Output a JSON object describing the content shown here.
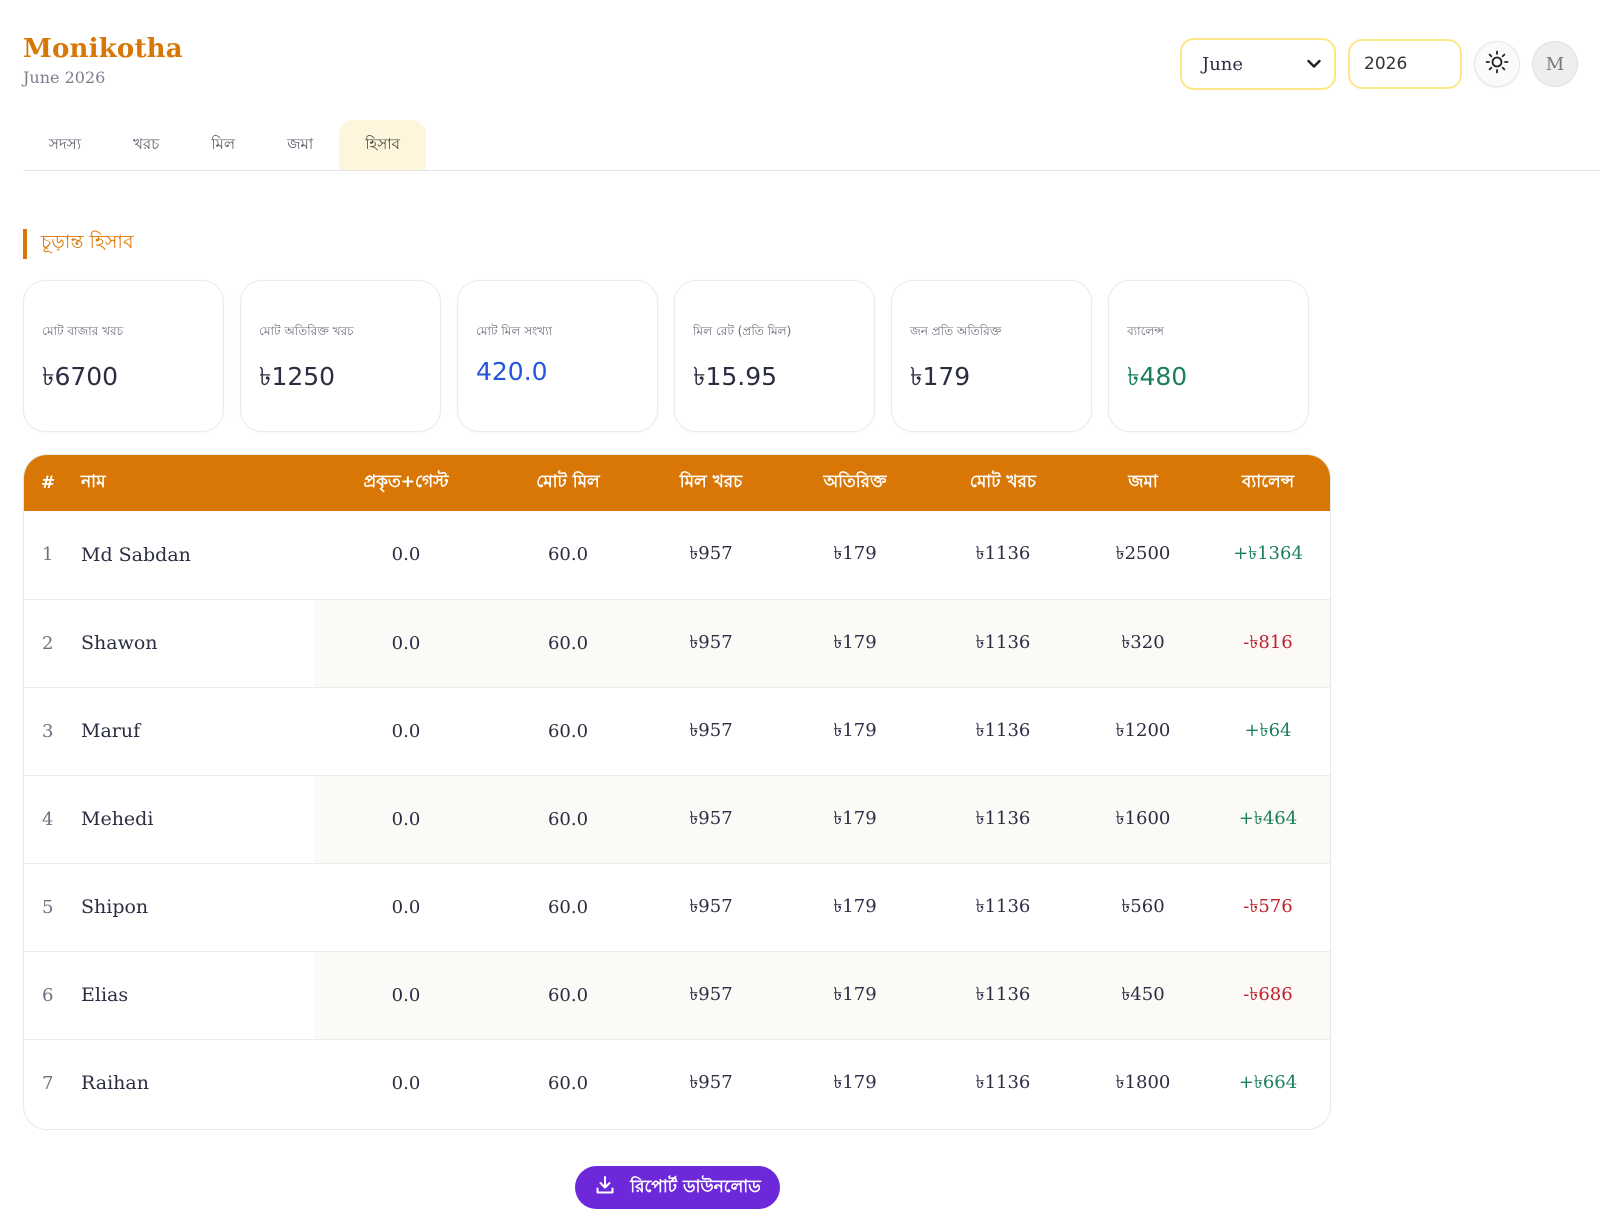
{
  "brand": {
    "title": "Monikotha",
    "subtitle": "June 2026"
  },
  "controls": {
    "month": "June",
    "year": "2026",
    "avatar_letter": "M"
  },
  "tabs": [
    {
      "label": "সদস্য"
    },
    {
      "label": "খরচ"
    },
    {
      "label": "মিল"
    },
    {
      "label": "জমা"
    },
    {
      "label": "হিসাব",
      "active": true
    }
  ],
  "section": {
    "title": "চূড়ান্ত হিসাব"
  },
  "cards": [
    {
      "label": "মোট বাজার খরচ",
      "value": "৳6700"
    },
    {
      "label": "মোট অতিরিক্ত খরচ",
      "value": "৳1250"
    },
    {
      "label": "মোট মিল সংখ্যা",
      "value": "420.0"
    },
    {
      "label": "মিল রেট (প্রতি মিল)",
      "value": "৳15.95"
    },
    {
      "label": "জন প্রতি অতিরিক্ত",
      "value": "৳179"
    },
    {
      "label": "ব্যালেন্স",
      "value": "৳480"
    }
  ],
  "table": {
    "headers": [
      "#",
      "নাম",
      "প্রকৃত+গেস্ট",
      "মোট মিল",
      "মিল খরচ",
      "অতিরিক্ত",
      "মোট খরচ",
      "জমা",
      "ব্যালেন্স"
    ],
    "rows": [
      {
        "idx": "1",
        "name": "Md Sabdan",
        "actual_guest": "0.0",
        "total_meal": "60.0",
        "meal_cost": "৳957",
        "extra": "৳179",
        "total_cost": "৳1136",
        "deposit": "৳2500",
        "balance": "+৳1364"
      },
      {
        "idx": "2",
        "name": "Shawon",
        "actual_guest": "0.0",
        "total_meal": "60.0",
        "meal_cost": "৳957",
        "extra": "৳179",
        "total_cost": "৳1136",
        "deposit": "৳320",
        "balance": "-৳816"
      },
      {
        "idx": "3",
        "name": "Maruf",
        "actual_guest": "0.0",
        "total_meal": "60.0",
        "meal_cost": "৳957",
        "extra": "৳179",
        "total_cost": "৳1136",
        "deposit": "৳1200",
        "balance": "+৳64"
      },
      {
        "idx": "4",
        "name": "Mehedi",
        "actual_guest": "0.0",
        "total_meal": "60.0",
        "meal_cost": "৳957",
        "extra": "৳179",
        "total_cost": "৳1136",
        "deposit": "৳1600",
        "balance": "+৳464"
      },
      {
        "idx": "5",
        "name": "Shipon",
        "actual_guest": "0.0",
        "total_meal": "60.0",
        "meal_cost": "৳957",
        "extra": "৳179",
        "total_cost": "৳1136",
        "deposit": "৳560",
        "balance": "-৳576"
      },
      {
        "idx": "6",
        "name": "Elias",
        "actual_guest": "0.0",
        "total_meal": "60.0",
        "meal_cost": "৳957",
        "extra": "৳179",
        "total_cost": "৳1136",
        "deposit": "৳450",
        "balance": "-৳686"
      },
      {
        "idx": "7",
        "name": "Raihan",
        "actual_guest": "0.0",
        "total_meal": "60.0",
        "meal_cost": "৳957",
        "extra": "৳179",
        "total_cost": "৳1136",
        "deposit": "৳1800",
        "balance": "+৳664"
      }
    ]
  },
  "download": {
    "label": "রিপোর্ট ডাউনলোড",
    "icon": "download-icon"
  },
  "colors": {
    "accent": "#d97706",
    "positive": "#1a7f5a",
    "negative": "#c0202c",
    "meal_count": "#2456d8",
    "button": "#6d28d9"
  }
}
